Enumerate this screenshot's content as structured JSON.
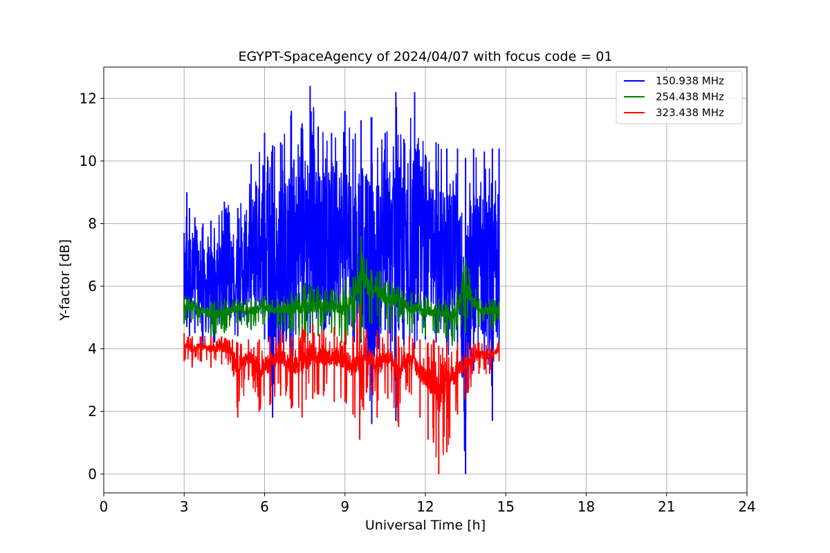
{
  "chart_data": {
    "type": "line",
    "title": "EGYPT-SpaceAgency of 2024/04/07 with focus code = 01",
    "xlabel": "Universal Time [h]",
    "ylabel": "Y-factor [dB]",
    "xlim": [
      0,
      24
    ],
    "ylim": [
      -0.6,
      13.0
    ],
    "xticks": [
      0,
      3,
      6,
      9,
      12,
      15,
      18,
      21,
      24
    ],
    "yticks": [
      0,
      2,
      4,
      6,
      8,
      10,
      12
    ],
    "grid": true,
    "legend_position": "top-right",
    "series": [
      {
        "name": "150.938 MHz",
        "color": "#0000ff",
        "x": [
          3.0,
          3.1,
          3.2,
          3.4,
          3.7,
          4.0,
          4.5,
          5.0,
          5.5,
          6.0,
          6.3,
          6.6,
          7.0,
          7.4,
          7.7,
          8.0,
          8.5,
          9.0,
          9.3,
          9.6,
          10.0,
          10.5,
          10.9,
          11.2,
          11.6,
          12.0,
          12.4,
          12.8,
          13.2,
          13.5,
          13.8,
          14.2,
          14.5,
          14.75
        ],
        "y": [
          7.7,
          9.0,
          8.5,
          8.2,
          8.0,
          8.1,
          8.7,
          8.5,
          9.9,
          10.9,
          10.5,
          10.6,
          11.6,
          11.2,
          12.4,
          11.1,
          10.9,
          11.6,
          10.7,
          11.3,
          11.4,
          10.9,
          12.2,
          10.7,
          12.2,
          10.2,
          10.6,
          10.4,
          10.4,
          10.1,
          10.4,
          10.3,
          10.4,
          10.4
        ],
        "y_min": [
          4.8,
          4.7,
          4.4,
          4.5,
          4.1,
          4.0,
          4.6,
          4.4,
          4.6,
          4.3,
          1.8,
          4.2,
          2.1,
          4.8,
          4.5,
          4.4,
          4.8,
          4.6,
          3.9,
          4.2,
          1.6,
          4.6,
          1.7,
          4.1,
          4.0,
          4.3,
          4.2,
          3.6,
          3.5,
          0.0,
          3.3,
          3.6,
          1.7,
          4.1
        ]
      },
      {
        "name": "254.438 MHz",
        "color": "#008000",
        "x": [
          3.0,
          3.5,
          4.0,
          4.5,
          5.0,
          5.5,
          6.0,
          6.5,
          7.0,
          7.5,
          8.0,
          8.5,
          9.0,
          9.3,
          9.6,
          10.0,
          10.3,
          10.6,
          11.0,
          11.5,
          12.0,
          12.5,
          13.0,
          13.5,
          14.0,
          14.5,
          14.75
        ],
        "y": [
          5.7,
          5.6,
          5.5,
          5.6,
          5.6,
          5.6,
          5.7,
          5.6,
          5.8,
          6.1,
          6.0,
          5.9,
          6.2,
          6.3,
          7.6,
          6.5,
          6.5,
          6.2,
          6.0,
          5.8,
          5.7,
          5.6,
          5.6,
          6.9,
          5.6,
          5.6,
          5.5
        ],
        "y_min": [
          4.8,
          4.9,
          4.4,
          4.5,
          4.8,
          4.6,
          4.8,
          4.6,
          4.5,
          4.2,
          4.4,
          4.5,
          4.0,
          4.6,
          4.3,
          4.8,
          4.7,
          4.6,
          4.8,
          4.5,
          4.4,
          4.5,
          4.1,
          4.5,
          4.7,
          4.6,
          4.9
        ]
      },
      {
        "name": "323.438 MHz",
        "color": "#ff0000",
        "x": [
          3.0,
          3.3,
          3.6,
          4.0,
          4.4,
          4.8,
          5.0,
          5.4,
          5.8,
          6.2,
          6.6,
          7.0,
          7.4,
          7.8,
          8.2,
          8.6,
          9.0,
          9.3,
          9.55,
          9.8,
          10.2,
          10.6,
          11.0,
          11.4,
          11.8,
          12.1,
          12.3,
          12.5,
          12.8,
          13.2,
          13.6,
          14.0,
          14.4,
          14.75
        ],
        "y": [
          4.5,
          4.4,
          4.4,
          4.4,
          4.4,
          4.3,
          4.2,
          4.3,
          4.3,
          4.4,
          4.6,
          4.4,
          4.7,
          4.8,
          4.6,
          4.7,
          4.6,
          4.4,
          5.4,
          4.6,
          4.6,
          4.6,
          4.4,
          4.4,
          4.3,
          4.2,
          4.3,
          4.1,
          4.2,
          4.2,
          4.2,
          4.2,
          4.2,
          4.2
        ],
        "y_min": [
          3.6,
          3.4,
          3.6,
          3.4,
          3.5,
          3.3,
          1.8,
          3.0,
          2.0,
          2.2,
          2.5,
          2.1,
          1.8,
          2.4,
          2.5,
          2.3,
          2.3,
          1.9,
          1.1,
          2.6,
          1.8,
          2.4,
          1.5,
          2.6,
          1.8,
          1.1,
          1.0,
          0.0,
          0.7,
          1.9,
          2.6,
          3.2,
          3.2,
          3.6
        ]
      }
    ]
  }
}
